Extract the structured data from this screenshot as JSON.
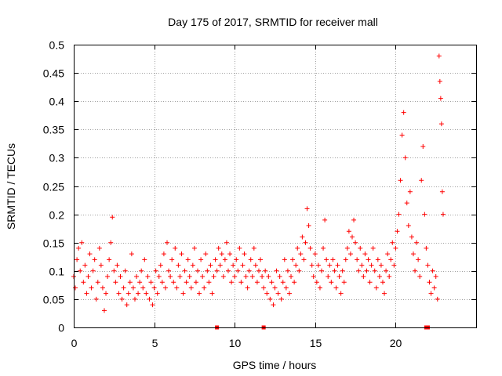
{
  "chart_data": {
    "type": "scatter",
    "title": "Day 175 of 2017, SRMTID for receiver mall",
    "xlabel": "GPS time / hours",
    "ylabel": "SRMTID / TECUs",
    "xlim": [
      0,
      25
    ],
    "ylim": [
      0,
      0.5
    ],
    "x_ticks": [
      {
        "value": 0,
        "label": "0"
      },
      {
        "value": 5,
        "label": "5"
      },
      {
        "value": 10,
        "label": "10"
      },
      {
        "value": 15,
        "label": "15"
      },
      {
        "value": 20,
        "label": "20"
      }
    ],
    "y_ticks": [
      {
        "value": 0,
        "label": "0"
      },
      {
        "value": 0.05,
        "label": "0.05"
      },
      {
        "value": 0.1,
        "label": "0.1"
      },
      {
        "value": 0.15,
        "label": "0.15"
      },
      {
        "value": 0.2,
        "label": "0.2"
      },
      {
        "value": 0.25,
        "label": "0.25"
      },
      {
        "value": 0.3,
        "label": "0.3"
      },
      {
        "value": 0.35,
        "label": "0.35"
      },
      {
        "value": 0.4,
        "label": "0.4"
      },
      {
        "value": 0.45,
        "label": "0.45"
      },
      {
        "value": 0.5,
        "label": "0.5"
      }
    ],
    "grid": true,
    "marker": "+",
    "color": "#ff0000",
    "series": [
      {
        "name": "SRMTID",
        "points": [
          [
            0.0,
            0.09
          ],
          [
            0.1,
            0.07
          ],
          [
            0.2,
            0.12
          ],
          [
            0.3,
            0.14
          ],
          [
            0.4,
            0.1
          ],
          [
            0.5,
            0.15
          ],
          [
            0.6,
            0.08
          ],
          [
            0.7,
            0.11
          ],
          [
            0.8,
            0.06
          ],
          [
            0.9,
            0.09
          ],
          [
            1.0,
            0.13
          ],
          [
            1.1,
            0.07
          ],
          [
            1.2,
            0.1
          ],
          [
            1.3,
            0.12
          ],
          [
            1.4,
            0.05
          ],
          [
            1.5,
            0.08
          ],
          [
            1.6,
            0.14
          ],
          [
            1.7,
            0.11
          ],
          [
            1.8,
            0.07
          ],
          [
            1.9,
            0.03
          ],
          [
            2.0,
            0.06
          ],
          [
            2.1,
            0.09
          ],
          [
            2.2,
            0.12
          ],
          [
            2.3,
            0.15
          ],
          [
            2.4,
            0.195
          ],
          [
            2.5,
            0.1
          ],
          [
            2.6,
            0.08
          ],
          [
            2.7,
            0.11
          ],
          [
            2.8,
            0.06
          ],
          [
            2.9,
            0.09
          ],
          [
            3.0,
            0.05
          ],
          [
            3.1,
            0.07
          ],
          [
            3.2,
            0.1
          ],
          [
            3.3,
            0.04
          ],
          [
            3.4,
            0.06
          ],
          [
            3.5,
            0.08
          ],
          [
            3.6,
            0.13
          ],
          [
            3.7,
            0.07
          ],
          [
            3.8,
            0.05
          ],
          [
            3.9,
            0.09
          ],
          [
            4.0,
            0.06
          ],
          [
            4.1,
            0.08
          ],
          [
            4.2,
            0.1
          ],
          [
            4.3,
            0.07
          ],
          [
            4.4,
            0.12
          ],
          [
            4.5,
            0.06
          ],
          [
            4.6,
            0.09
          ],
          [
            4.7,
            0.05
          ],
          [
            4.8,
            0.08
          ],
          [
            4.9,
            0.04
          ],
          [
            5.0,
            0.07
          ],
          [
            5.1,
            0.1
          ],
          [
            5.2,
            0.06
          ],
          [
            5.3,
            0.09
          ],
          [
            5.4,
            0.11
          ],
          [
            5.5,
            0.08
          ],
          [
            5.6,
            0.13
          ],
          [
            5.7,
            0.07
          ],
          [
            5.8,
            0.15
          ],
          [
            5.9,
            0.1
          ],
          [
            6.0,
            0.09
          ],
          [
            6.1,
            0.12
          ],
          [
            6.2,
            0.08
          ],
          [
            6.3,
            0.14
          ],
          [
            6.4,
            0.07
          ],
          [
            6.5,
            0.11
          ],
          [
            6.6,
            0.09
          ],
          [
            6.7,
            0.13
          ],
          [
            6.8,
            0.06
          ],
          [
            6.9,
            0.1
          ],
          [
            7.0,
            0.08
          ],
          [
            7.1,
            0.12
          ],
          [
            7.2,
            0.09
          ],
          [
            7.3,
            0.07
          ],
          [
            7.4,
            0.11
          ],
          [
            7.5,
            0.14
          ],
          [
            7.6,
            0.08
          ],
          [
            7.7,
            0.1
          ],
          [
            7.8,
            0.06
          ],
          [
            7.9,
            0.12
          ],
          [
            8.0,
            0.09
          ],
          [
            8.1,
            0.07
          ],
          [
            8.2,
            0.13
          ],
          [
            8.3,
            0.1
          ],
          [
            8.4,
            0.08
          ],
          [
            8.5,
            0.11
          ],
          [
            8.6,
            0.06
          ],
          [
            8.7,
            0.09
          ],
          [
            8.8,
            0.12
          ],
          [
            8.9,
            0.1
          ],
          [
            9.0,
            0.14
          ],
          [
            9.1,
            0.11
          ],
          [
            9.2,
            0.13
          ],
          [
            9.3,
            0.09
          ],
          [
            9.4,
            0.12
          ],
          [
            9.5,
            0.15
          ],
          [
            9.6,
            0.1
          ],
          [
            9.7,
            0.13
          ],
          [
            9.8,
            0.08
          ],
          [
            9.9,
            0.11
          ],
          [
            10.0,
            0.09
          ],
          [
            10.1,
            0.12
          ],
          [
            10.2,
            0.1
          ],
          [
            10.3,
            0.14
          ],
          [
            10.4,
            0.08
          ],
          [
            10.5,
            0.11
          ],
          [
            10.6,
            0.13
          ],
          [
            10.7,
            0.09
          ],
          [
            10.8,
            0.07
          ],
          [
            10.9,
            0.1
          ],
          [
            11.0,
            0.12
          ],
          [
            11.1,
            0.09
          ],
          [
            11.2,
            0.14
          ],
          [
            11.3,
            0.11
          ],
          [
            11.4,
            0.08
          ],
          [
            11.5,
            0.1
          ],
          [
            11.6,
            0.12
          ],
          [
            11.7,
            0.09
          ],
          [
            11.8,
            0.07
          ],
          [
            11.9,
            0.1
          ],
          [
            12.0,
            0.06
          ],
          [
            12.1,
            0.09
          ],
          [
            12.2,
            0.05
          ],
          [
            12.3,
            0.08
          ],
          [
            12.4,
            0.04
          ],
          [
            12.5,
            0.07
          ],
          [
            12.6,
            0.1
          ],
          [
            12.7,
            0.06
          ],
          [
            12.8,
            0.09
          ],
          [
            12.9,
            0.05
          ],
          [
            13.0,
            0.08
          ],
          [
            13.1,
            0.12
          ],
          [
            13.2,
            0.07
          ],
          [
            13.3,
            0.1
          ],
          [
            13.4,
            0.06
          ],
          [
            13.5,
            0.09
          ],
          [
            13.6,
            0.12
          ],
          [
            13.7,
            0.08
          ],
          [
            13.8,
            0.11
          ],
          [
            13.9,
            0.14
          ],
          [
            14.0,
            0.1
          ],
          [
            14.1,
            0.13
          ],
          [
            14.2,
            0.16
          ],
          [
            14.3,
            0.12
          ],
          [
            14.4,
            0.15
          ],
          [
            14.5,
            0.21
          ],
          [
            14.6,
            0.18
          ],
          [
            14.7,
            0.14
          ],
          [
            14.8,
            0.11
          ],
          [
            14.9,
            0.09
          ],
          [
            15.0,
            0.13
          ],
          [
            15.1,
            0.08
          ],
          [
            15.2,
            0.11
          ],
          [
            15.3,
            0.07
          ],
          [
            15.4,
            0.1
          ],
          [
            15.5,
            0.14
          ],
          [
            15.6,
            0.19
          ],
          [
            15.7,
            0.12
          ],
          [
            15.8,
            0.09
          ],
          [
            15.9,
            0.11
          ],
          [
            16.0,
            0.08
          ],
          [
            16.1,
            0.12
          ],
          [
            16.2,
            0.1
          ],
          [
            16.3,
            0.07
          ],
          [
            16.4,
            0.11
          ],
          [
            16.5,
            0.09
          ],
          [
            16.6,
            0.06
          ],
          [
            16.7,
            0.1
          ],
          [
            16.8,
            0.08
          ],
          [
            16.9,
            0.12
          ],
          [
            17.0,
            0.14
          ],
          [
            17.1,
            0.17
          ],
          [
            17.2,
            0.13
          ],
          [
            17.3,
            0.16
          ],
          [
            17.4,
            0.19
          ],
          [
            17.5,
            0.15
          ],
          [
            17.6,
            0.12
          ],
          [
            17.7,
            0.1
          ],
          [
            17.8,
            0.14
          ],
          [
            17.9,
            0.11
          ],
          [
            18.0,
            0.09
          ],
          [
            18.1,
            0.13
          ],
          [
            18.2,
            0.1
          ],
          [
            18.3,
            0.12
          ],
          [
            18.4,
            0.08
          ],
          [
            18.5,
            0.11
          ],
          [
            18.6,
            0.14
          ],
          [
            18.7,
            0.1
          ],
          [
            18.8,
            0.07
          ],
          [
            18.9,
            0.12
          ],
          [
            19.0,
            0.09
          ],
          [
            19.1,
            0.11
          ],
          [
            19.2,
            0.08
          ],
          [
            19.3,
            0.06
          ],
          [
            19.4,
            0.1
          ],
          [
            19.5,
            0.13
          ],
          [
            19.6,
            0.09
          ],
          [
            19.7,
            0.12
          ],
          [
            19.8,
            0.15
          ],
          [
            19.9,
            0.11
          ],
          [
            20.0,
            0.14
          ],
          [
            20.1,
            0.17
          ],
          [
            20.2,
            0.2
          ],
          [
            20.3,
            0.26
          ],
          [
            20.4,
            0.34
          ],
          [
            20.5,
            0.38
          ],
          [
            20.6,
            0.3
          ],
          [
            20.7,
            0.22
          ],
          [
            20.8,
            0.18
          ],
          [
            20.9,
            0.24
          ],
          [
            21.0,
            0.16
          ],
          [
            21.1,
            0.13
          ],
          [
            21.2,
            0.1
          ],
          [
            21.3,
            0.15
          ],
          [
            21.4,
            0.12
          ],
          [
            21.5,
            0.09
          ],
          [
            21.6,
            0.26
          ],
          [
            21.7,
            0.32
          ],
          [
            21.8,
            0.2
          ],
          [
            21.9,
            0.14
          ],
          [
            22.0,
            0.11
          ],
          [
            22.1,
            0.08
          ],
          [
            22.2,
            0.06
          ],
          [
            22.3,
            0.1
          ],
          [
            22.4,
            0.07
          ],
          [
            22.5,
            0.09
          ],
          [
            22.6,
            0.05
          ],
          [
            22.7,
            0.48
          ],
          [
            22.75,
            0.435
          ],
          [
            22.8,
            0.405
          ],
          [
            22.85,
            0.36
          ],
          [
            22.9,
            0.24
          ],
          [
            22.95,
            0.2
          ]
        ]
      }
    ],
    "x_axis_markers": [
      8.9,
      11.8,
      21.9,
      22.0
    ]
  }
}
